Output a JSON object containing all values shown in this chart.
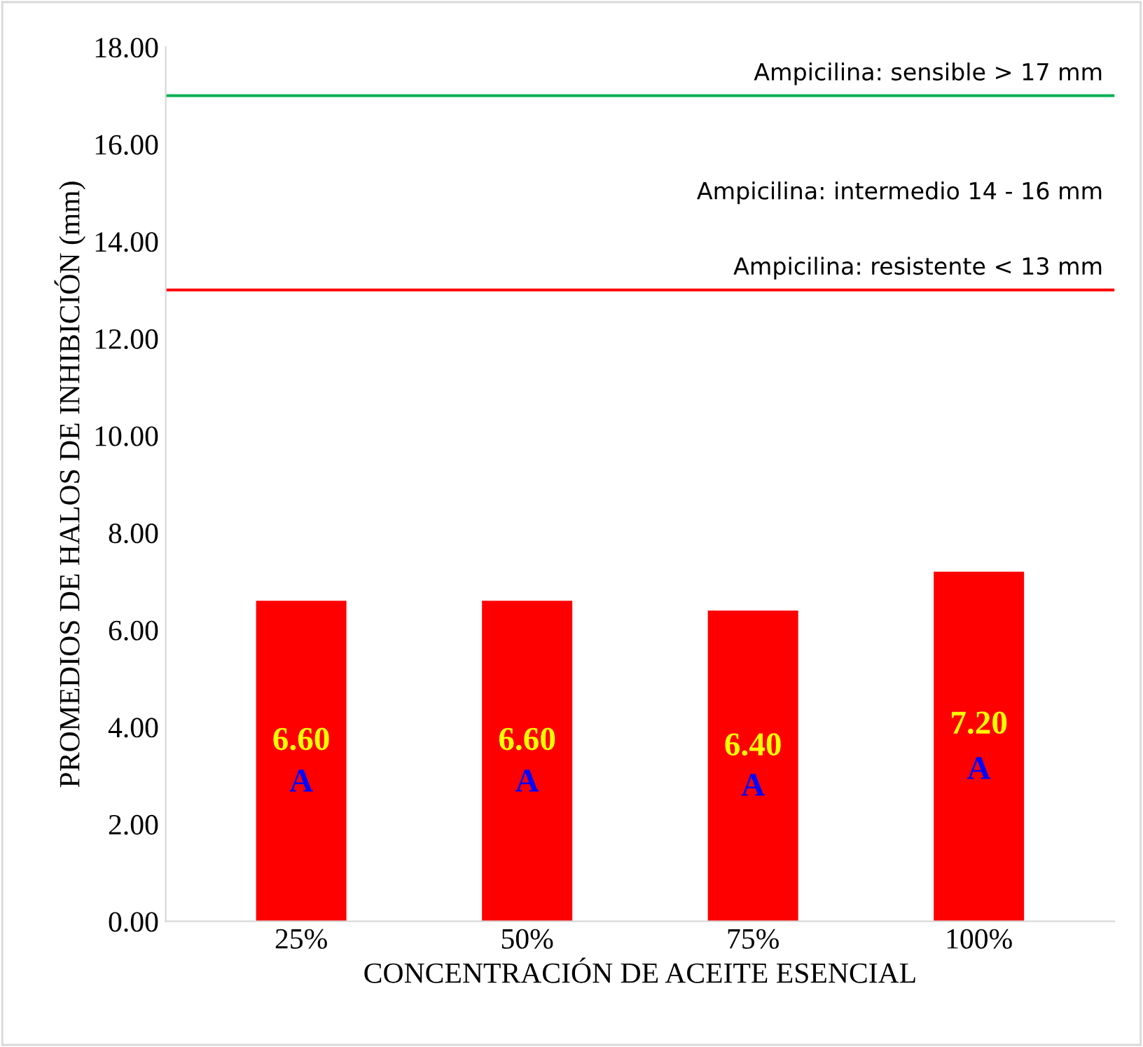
{
  "chart_data": {
    "type": "bar",
    "xlabel": "CONCENTRACIÓN DE ACEITE ESENCIAL",
    "ylabel": "PROMEDIOS DE HALOS DE INHIBICIÓN (mm)",
    "categories": [
      "25%",
      "50%",
      "75%",
      "100%"
    ],
    "values": [
      6.6,
      6.6,
      6.4,
      7.2
    ],
    "color": "#ff0000",
    "value_labels": [
      "6.60",
      "6.60",
      "6.40",
      "7.20"
    ],
    "ylim": [
      0,
      18
    ],
    "yticks": [
      {
        "value": 0,
        "label": "0.00"
      },
      {
        "value": 2,
        "label": "2.00"
      },
      {
        "value": 4,
        "label": "4.00"
      },
      {
        "value": 6,
        "label": "6.00"
      },
      {
        "value": 8,
        "label": "8.00"
      },
      {
        "value": 10,
        "label": "10.00"
      },
      {
        "value": 12,
        "label": "12.00"
      },
      {
        "value": 14,
        "label": "14.00"
      },
      {
        "value": 16,
        "label": "16.00"
      },
      {
        "value": 18,
        "label": "18.00"
      }
    ],
    "grid": false,
    "ref_lines": [
      {
        "axis": "y",
        "value": 17,
        "label": "Ampicilina: sensible > 17 mm",
        "color": "#00b050"
      },
      {
        "axis": "y",
        "value": 13,
        "label": "Ampicilina: resistente < 13 mm",
        "color": "#ff0000"
      }
    ],
    "annotations": [
      "Ampicilina: intermedio 14 - 16 mm",
      "A",
      "A",
      "A",
      "A"
    ]
  }
}
